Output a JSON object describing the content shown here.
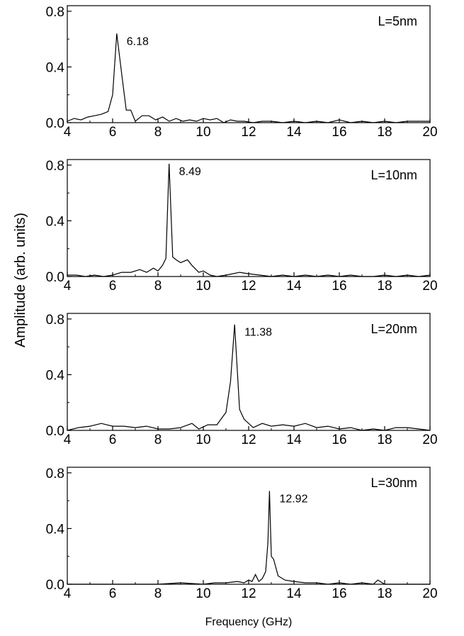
{
  "figure": {
    "ylabel": "Amplitude  (arb. units)",
    "xlabel": "Frequency (GHz)"
  },
  "chart_data": [
    {
      "type": "line",
      "panel_label": "L=5nm",
      "peak_label": "6.18",
      "peak": {
        "x": 6.18,
        "y": 0.64
      },
      "xlim": [
        4,
        20
      ],
      "ylim": [
        0,
        0.84
      ],
      "xticks": [
        "4",
        "6",
        "8",
        "10",
        "12",
        "14",
        "16",
        "18",
        "20"
      ],
      "yticks": [
        "0.0",
        "0.4",
        "0.8"
      ],
      "x": [
        4.0,
        4.3,
        4.6,
        4.9,
        5.2,
        5.5,
        5.8,
        6.0,
        6.18,
        6.4,
        6.6,
        6.8,
        7.0,
        7.3,
        7.6,
        7.9,
        8.2,
        8.5,
        8.8,
        9.1,
        9.4,
        9.7,
        10.0,
        10.3,
        10.6,
        10.9,
        11.2,
        11.5,
        11.8,
        12.2,
        12.6,
        13.0,
        13.5,
        14.0,
        14.5,
        15.0,
        15.5,
        16.0,
        16.5,
        17.0,
        17.5,
        18.0,
        18.5,
        19.0,
        19.5,
        20.0
      ],
      "y": [
        0.01,
        0.03,
        0.02,
        0.04,
        0.05,
        0.06,
        0.08,
        0.2,
        0.64,
        0.35,
        0.09,
        0.09,
        0.01,
        0.05,
        0.05,
        0.02,
        0.04,
        0.01,
        0.03,
        0.01,
        0.02,
        0.01,
        0.03,
        0.02,
        0.03,
        0.0,
        0.02,
        0.01,
        0.01,
        0.0,
        0.01,
        0.01,
        0.0,
        0.01,
        0.0,
        0.01,
        0.0,
        0.02,
        0.0,
        0.01,
        0.0,
        0.01,
        0.0,
        0.01,
        0.01,
        0.01
      ]
    },
    {
      "type": "line",
      "panel_label": "L=10nm",
      "peak_label": "8.49",
      "peak": {
        "x": 8.49,
        "y": 0.81
      },
      "xlim": [
        4,
        20
      ],
      "ylim": [
        0,
        0.84
      ],
      "xticks": [
        "4",
        "6",
        "8",
        "10",
        "12",
        "14",
        "16",
        "18",
        "20"
      ],
      "yticks": [
        "0.0",
        "0.4",
        "0.8"
      ],
      "x": [
        4.0,
        4.4,
        4.8,
        5.2,
        5.6,
        6.0,
        6.4,
        6.8,
        7.2,
        7.5,
        7.8,
        8.0,
        8.2,
        8.35,
        8.49,
        8.65,
        8.8,
        9.0,
        9.3,
        9.5,
        9.8,
        10.0,
        10.3,
        10.6,
        11.0,
        11.3,
        11.6,
        12.0,
        12.5,
        13.0,
        13.5,
        14.0,
        14.5,
        15.0,
        15.5,
        16.0,
        16.5,
        17.0,
        17.5,
        18.0,
        18.5,
        19.0,
        19.5,
        20.0
      ],
      "y": [
        0.01,
        0.01,
        0.0,
        0.01,
        0.0,
        0.01,
        0.03,
        0.03,
        0.05,
        0.03,
        0.06,
        0.04,
        0.08,
        0.13,
        0.81,
        0.14,
        0.12,
        0.1,
        0.12,
        0.08,
        0.03,
        0.04,
        0.01,
        0.0,
        0.01,
        0.02,
        0.03,
        0.02,
        0.01,
        0.0,
        0.01,
        0.0,
        0.01,
        0.0,
        0.01,
        0.0,
        0.01,
        0.0,
        0.0,
        0.01,
        0.0,
        0.01,
        0.0,
        0.01
      ]
    },
    {
      "type": "line",
      "panel_label": "L=20nm",
      "peak_label": "11.38",
      "peak": {
        "x": 11.38,
        "y": 0.76
      },
      "xlim": [
        4,
        20
      ],
      "ylim": [
        0,
        0.84
      ],
      "xticks": [
        "4",
        "6",
        "8",
        "10",
        "12",
        "14",
        "16",
        "18",
        "20"
      ],
      "yticks": [
        "0.0",
        "0.4",
        "0.8"
      ],
      "x": [
        4.0,
        4.5,
        5.0,
        5.5,
        6.0,
        6.5,
        7.0,
        7.5,
        8.0,
        8.5,
        9.0,
        9.5,
        9.8,
        10.2,
        10.6,
        11.0,
        11.2,
        11.38,
        11.6,
        11.8,
        12.2,
        12.6,
        13.0,
        13.5,
        14.0,
        14.5,
        15.0,
        15.5,
        16.0,
        16.5,
        17.0,
        17.5,
        18.0,
        18.5,
        19.0,
        19.5,
        20.0
      ],
      "y": [
        0.0,
        0.02,
        0.03,
        0.05,
        0.03,
        0.03,
        0.02,
        0.03,
        0.01,
        0.01,
        0.02,
        0.05,
        0.01,
        0.04,
        0.04,
        0.13,
        0.35,
        0.76,
        0.15,
        0.08,
        0.02,
        0.05,
        0.03,
        0.04,
        0.03,
        0.05,
        0.02,
        0.03,
        0.01,
        0.02,
        0.0,
        0.01,
        0.0,
        0.02,
        0.02,
        0.01,
        0.0
      ]
    },
    {
      "type": "line",
      "panel_label": "L=30nm",
      "peak_label": "12.92",
      "peak": {
        "x": 12.92,
        "y": 0.67
      },
      "xlim": [
        4,
        20
      ],
      "ylim": [
        0,
        0.84
      ],
      "xticks": [
        "4",
        "6",
        "8",
        "10",
        "12",
        "14",
        "16",
        "18",
        "20"
      ],
      "yticks": [
        "0.0",
        "0.4",
        "0.8"
      ],
      "x": [
        4.0,
        5.0,
        6.0,
        7.0,
        8.0,
        9.0,
        10.0,
        10.5,
        11.0,
        11.5,
        11.8,
        12.0,
        12.15,
        12.3,
        12.45,
        12.6,
        12.75,
        12.85,
        12.92,
        13.0,
        13.1,
        13.3,
        13.6,
        14.0,
        14.5,
        15.0,
        15.5,
        16.0,
        16.5,
        17.0,
        17.5,
        17.7,
        18.0,
        19.0,
        20.0
      ],
      "y": [
        0.0,
        0.0,
        0.0,
        0.0,
        0.0,
        0.01,
        0.0,
        0.01,
        0.01,
        0.02,
        0.01,
        0.03,
        0.02,
        0.07,
        0.02,
        0.04,
        0.09,
        0.3,
        0.67,
        0.2,
        0.18,
        0.06,
        0.03,
        0.02,
        0.01,
        0.01,
        0.0,
        0.01,
        0.0,
        0.01,
        0.0,
        0.03,
        0.0,
        0.0,
        0.0
      ]
    }
  ]
}
